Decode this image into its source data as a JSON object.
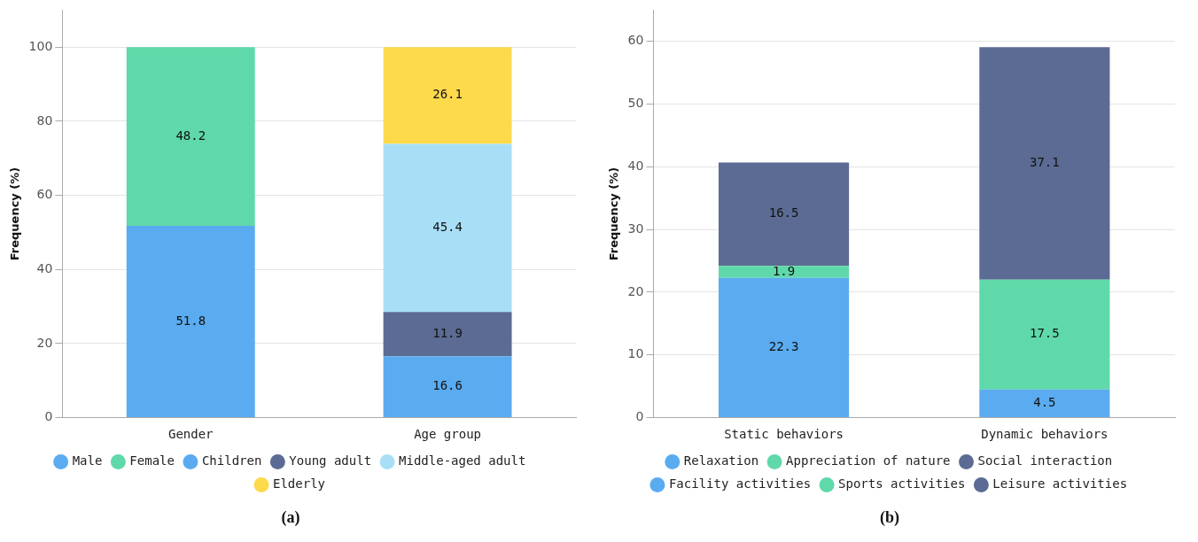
{
  "chart_data": [
    {
      "type": "bar",
      "title": "(a)",
      "ylabel": "Frequency (%)",
      "categories": [
        "Gender",
        "Age group"
      ],
      "stacked": true,
      "data_labels": true,
      "grid": "y",
      "legend": "bottom",
      "ylim": [
        0,
        110
      ],
      "yticks": [
        0,
        20,
        40,
        60,
        80,
        100
      ],
      "series": [
        {
          "name": "Male",
          "color": "#5aabf0",
          "values": [
            51.8,
            null
          ]
        },
        {
          "name": "Female",
          "color": "#5fd9a9",
          "values": [
            48.2,
            null
          ]
        },
        {
          "name": "Children",
          "color": "#5aabf0",
          "values": [
            null,
            16.6
          ]
        },
        {
          "name": "Young adult",
          "color": "#5b6b93",
          "values": [
            null,
            11.9
          ]
        },
        {
          "name": "Middle-aged adult",
          "color": "#a8dff7",
          "values": [
            null,
            45.4
          ]
        },
        {
          "name": "Elderly",
          "color": "#fdd94c",
          "values": [
            null,
            26.1
          ]
        }
      ]
    },
    {
      "type": "bar",
      "title": "(b)",
      "ylabel": "Frequency (%)",
      "categories": [
        "Static behaviors",
        "Dynamic behaviors"
      ],
      "stacked": true,
      "data_labels": true,
      "grid": "y",
      "legend": "bottom",
      "ylim": [
        0,
        65
      ],
      "yticks": [
        0,
        10,
        20,
        30,
        40,
        50,
        60
      ],
      "series": [
        {
          "name": "Relaxation",
          "color": "#5aabf0",
          "values": [
            22.3,
            null
          ]
        },
        {
          "name": "Appreciation of nature",
          "color": "#5fd9a9",
          "values": [
            1.9,
            null
          ]
        },
        {
          "name": "Social interaction",
          "color": "#5b6b93",
          "values": [
            16.5,
            null
          ]
        },
        {
          "name": "Facility activities",
          "color": "#5aabf0",
          "values": [
            null,
            4.5
          ]
        },
        {
          "name": "Sports activities",
          "color": "#5fd9a9",
          "values": [
            null,
            17.5
          ]
        },
        {
          "name": "Leisure activities",
          "color": "#5b6b93",
          "values": [
            null,
            37.1
          ]
        }
      ]
    }
  ]
}
